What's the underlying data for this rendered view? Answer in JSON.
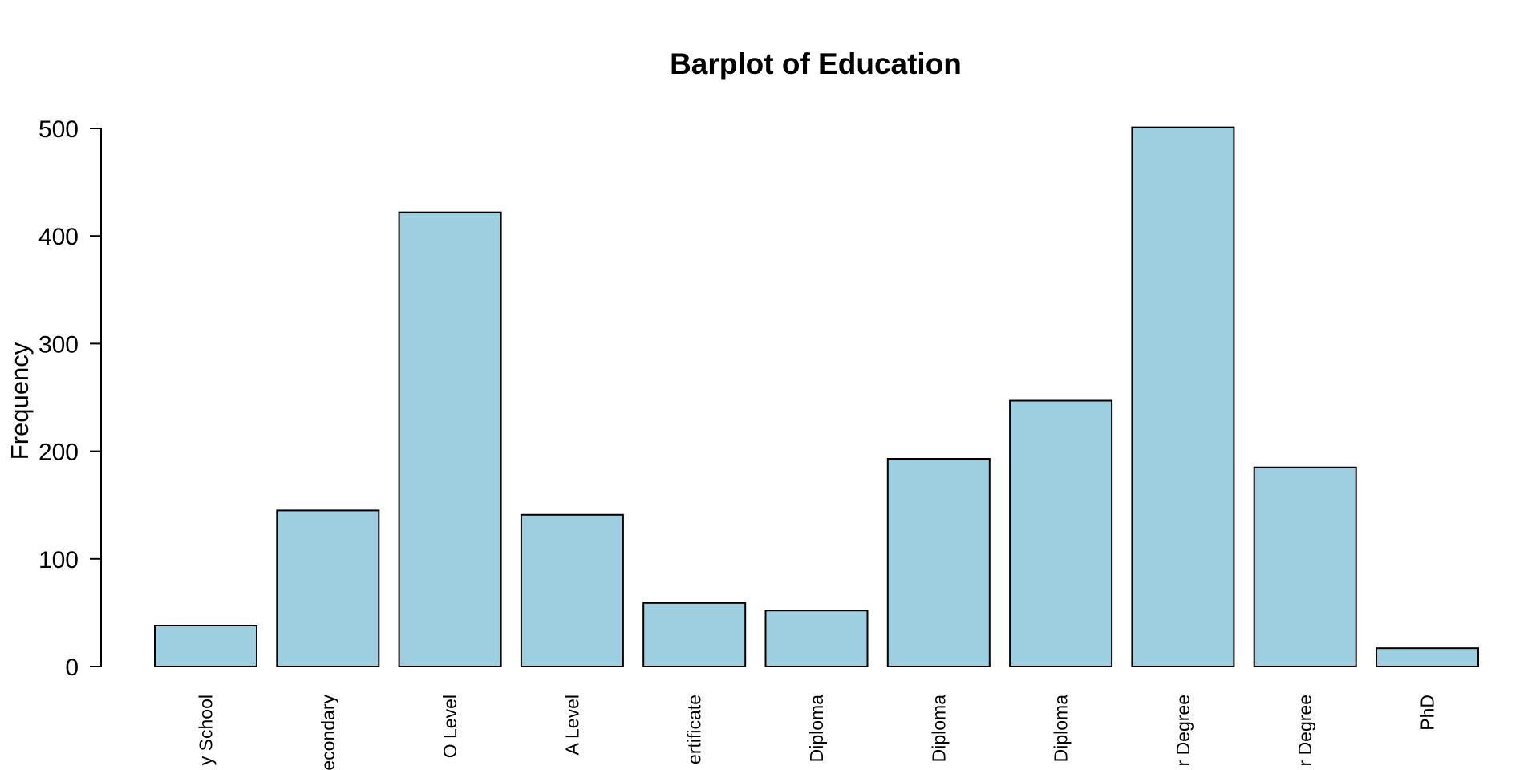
{
  "chart_data": {
    "type": "bar",
    "title": "Barplot of Education",
    "xlabel": "",
    "ylabel": "Frequency",
    "categories": [
      "y School",
      "econdary",
      "O Level",
      "A Level",
      "ertificate",
      "Diploma",
      "Diploma",
      "Diploma",
      "r Degree",
      "r Degree",
      "PhD"
    ],
    "values": [
      38,
      145,
      422,
      141,
      59,
      52,
      193,
      247,
      501,
      185,
      17
    ],
    "ylim": [
      0,
      500
    ],
    "yticks": [
      0,
      100,
      200,
      300,
      400,
      500
    ],
    "ytick_labels": [
      "0",
      "100",
      "200",
      "300",
      "400",
      "500"
    ],
    "bar_color": "#9ecfe0",
    "bar_edge_color": "#000000",
    "grid": false,
    "legend": "none"
  }
}
